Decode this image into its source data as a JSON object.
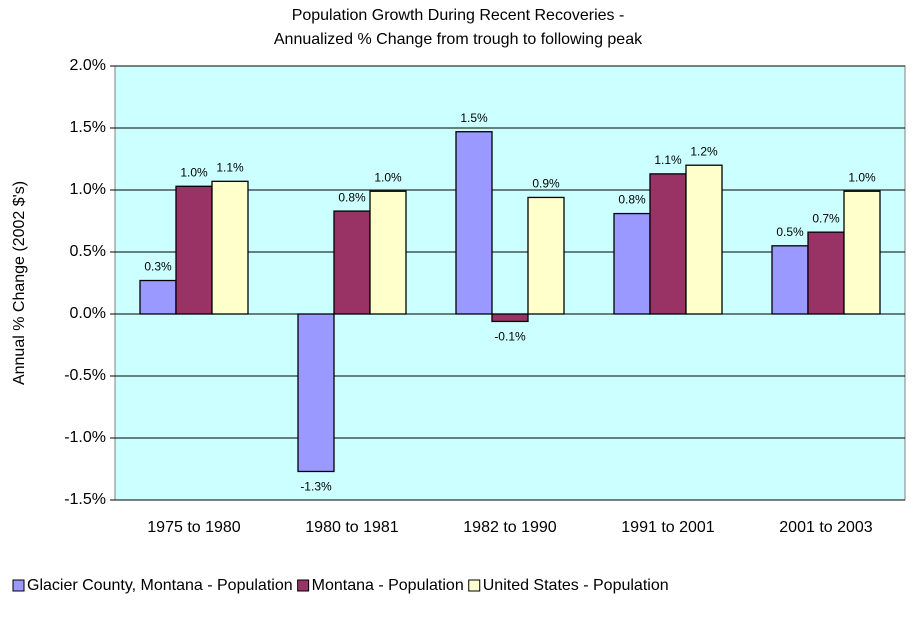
{
  "chart_data": {
    "type": "bar",
    "title": "Population Growth During Recent Recoveries -",
    "subtitle": "Annualized % Change from trough to following peak",
    "y_label": "Annual % Change (2002 $'s)",
    "categories": [
      "1975 to 1980",
      "1980 to 1981",
      "1982 to 1990",
      "1991 to 2001",
      "2001 to 2003"
    ],
    "series": [
      {
        "name": "Glacier County, Montana - Population",
        "color": "#9999ff",
        "values": [
          0.27,
          -1.27,
          1.47,
          0.81,
          0.55
        ],
        "value_labels": [
          "0.3%",
          "-1.3%",
          "1.5%",
          "0.8%",
          "0.5%"
        ]
      },
      {
        "name": "Montana - Population",
        "color": "#993366",
        "values": [
          1.03,
          0.83,
          -0.06,
          1.13,
          0.66
        ],
        "value_labels": [
          "1.0%",
          "0.8%",
          "-0.1%",
          "1.1%",
          "0.7%"
        ]
      },
      {
        "name": "United States - Population",
        "color": "#ffffcc",
        "values": [
          1.07,
          0.99,
          0.94,
          1.2,
          0.99
        ],
        "value_labels": [
          "1.1%",
          "1.0%",
          "0.9%",
          "1.2%",
          "1.0%"
        ]
      }
    ],
    "ylim": [
      -1.5,
      2.0
    ],
    "yticks": [
      {
        "value": -1.5,
        "label": "-1.5%"
      },
      {
        "value": -1.0,
        "label": "-1.0%"
      },
      {
        "value": -0.5,
        "label": "-0.5%"
      },
      {
        "value": 0.0,
        "label": "0.0%"
      },
      {
        "value": 0.5,
        "label": "0.5%"
      },
      {
        "value": 1.0,
        "label": "1.0%"
      },
      {
        "value": 1.5,
        "label": "1.5%"
      },
      {
        "value": 2.0,
        "label": "2.0%"
      }
    ],
    "grid": true,
    "plot_background": "#ccffff",
    "legend": "bottom"
  }
}
